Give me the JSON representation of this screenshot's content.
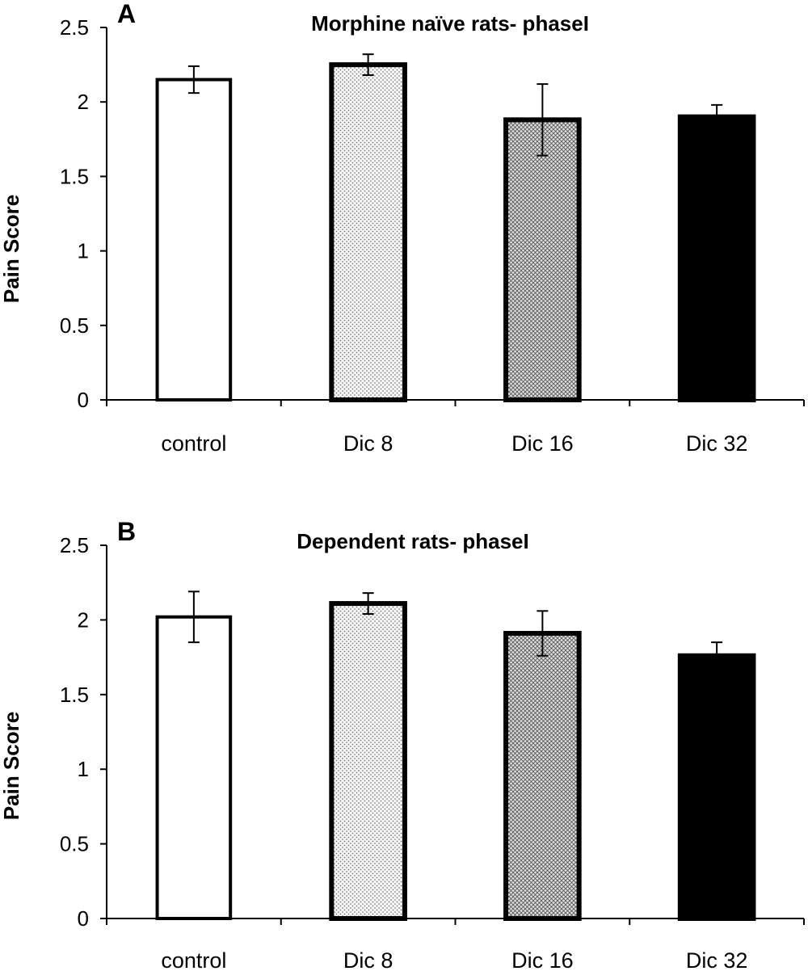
{
  "chart_data": [
    {
      "type": "bar",
      "panel": "A",
      "title": "Morphine naïve rats- phaseI",
      "ylabel": "Pain Score",
      "xlabel": "",
      "ylim": [
        0,
        2.5
      ],
      "yticks": [
        "0",
        "0.5",
        "1",
        "1.5",
        "2",
        "2.5"
      ],
      "categories": [
        "control",
        "Dic 8",
        "Dic 16",
        "Dic 32"
      ],
      "values": [
        2.15,
        2.25,
        1.88,
        1.9
      ],
      "errors": [
        0.09,
        0.07,
        0.24,
        0.08
      ],
      "bar_fills": [
        "white",
        "light-dots",
        "crosshatch",
        "black"
      ]
    },
    {
      "type": "bar",
      "panel": "B",
      "title": "Dependent rats- phaseI",
      "ylabel": "Pain Score",
      "xlabel": "",
      "ylim": [
        0,
        2.5
      ],
      "yticks": [
        "0",
        "0.5",
        "1",
        "1.5",
        "2",
        "2.5"
      ],
      "categories": [
        "control",
        "Dic 8",
        "Dic 16",
        "Dic 32"
      ],
      "values": [
        2.02,
        2.11,
        1.91,
        1.76
      ],
      "errors": [
        0.17,
        0.07,
        0.15,
        0.09
      ],
      "bar_fills": [
        "white",
        "light-dots",
        "crosshatch",
        "black"
      ]
    }
  ]
}
